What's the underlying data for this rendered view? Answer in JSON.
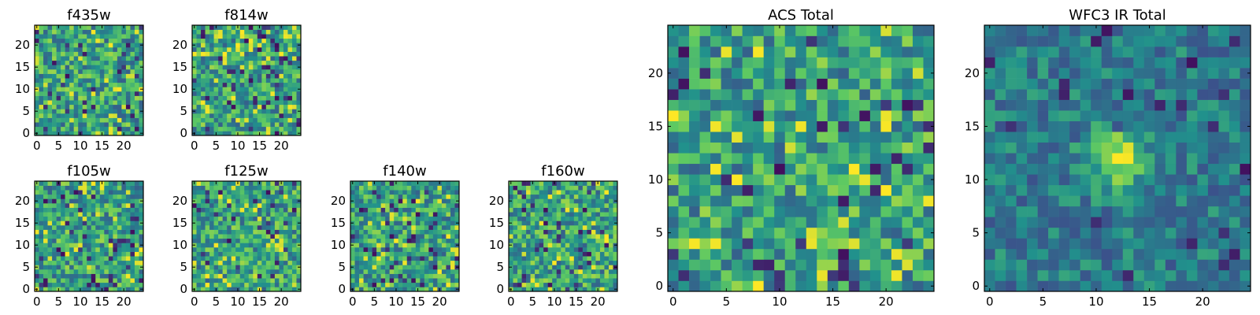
{
  "figure": {
    "colormap": [
      "#440154",
      "#3b528b",
      "#21918c",
      "#5ec962",
      "#fde725"
    ],
    "frame_color": "#000000"
  },
  "chart_data": [
    {
      "type": "heatmap",
      "title": "f435w",
      "grid": false,
      "nx": 25,
      "ny": 25,
      "xlim": [
        -0.5,
        24.5
      ],
      "ylim": [
        -0.5,
        24.5
      ],
      "xticks": [
        0,
        5,
        10,
        15,
        20
      ],
      "yticks": [
        0,
        5,
        10,
        15,
        20
      ],
      "source_seed": 11,
      "source": null,
      "values": []
    },
    {
      "type": "heatmap",
      "title": "f814w",
      "grid": false,
      "nx": 25,
      "ny": 25,
      "xlim": [
        -0.5,
        24.5
      ],
      "ylim": [
        -0.5,
        24.5
      ],
      "xticks": [
        0,
        5,
        10,
        15,
        20
      ],
      "yticks": [
        0,
        5,
        10,
        15,
        20
      ],
      "source_seed": 23,
      "source": null,
      "values": []
    },
    {
      "type": "heatmap",
      "title": "f105w",
      "grid": false,
      "nx": 25,
      "ny": 25,
      "xlim": [
        -0.5,
        24.5
      ],
      "ylim": [
        -0.5,
        24.5
      ],
      "xticks": [
        0,
        5,
        10,
        15,
        20
      ],
      "yticks": [
        0,
        5,
        10,
        15,
        20
      ],
      "source_seed": 37,
      "source": null,
      "values": []
    },
    {
      "type": "heatmap",
      "title": "f125w",
      "grid": false,
      "nx": 25,
      "ny": 25,
      "xlim": [
        -0.5,
        24.5
      ],
      "ylim": [
        -0.5,
        24.5
      ],
      "xticks": [
        0,
        5,
        10,
        15,
        20
      ],
      "yticks": [
        0,
        5,
        10,
        15,
        20
      ],
      "source_seed": 41,
      "source": null,
      "values": []
    },
    {
      "type": "heatmap",
      "title": "f140w",
      "grid": false,
      "nx": 25,
      "ny": 25,
      "xlim": [
        -0.5,
        24.5
      ],
      "ylim": [
        -0.5,
        24.5
      ],
      "xticks": [
        0,
        5,
        10,
        15,
        20
      ],
      "yticks": [
        0,
        5,
        10,
        15,
        20
      ],
      "source_seed": 53,
      "source": null,
      "values": []
    },
    {
      "type": "heatmap",
      "title": "f160w",
      "grid": false,
      "nx": 25,
      "ny": 25,
      "xlim": [
        -0.5,
        24.5
      ],
      "ylim": [
        -0.5,
        24.5
      ],
      "xticks": [
        0,
        5,
        10,
        15,
        20
      ],
      "yticks": [
        0,
        5,
        10,
        15,
        20
      ],
      "source_seed": 67,
      "source": null,
      "values": []
    },
    {
      "type": "heatmap",
      "title": "ACS Total",
      "grid": false,
      "nx": 25,
      "ny": 25,
      "xlim": [
        -0.5,
        24.5
      ],
      "ylim": [
        -0.5,
        24.5
      ],
      "xticks": [
        0,
        5,
        10,
        15,
        20
      ],
      "yticks": [
        0,
        5,
        10,
        15,
        20
      ],
      "source_seed": 79,
      "source": null,
      "values": []
    },
    {
      "type": "heatmap",
      "title": "WFC3 IR Total",
      "grid": false,
      "nx": 25,
      "ny": 25,
      "xlim": [
        -0.5,
        24.5
      ],
      "ylim": [
        -0.5,
        24.5
      ],
      "xticks": [
        0,
        5,
        10,
        15,
        20
      ],
      "yticks": [
        0,
        5,
        10,
        15,
        20
      ],
      "source_seed": 97,
      "source": {
        "x": 12,
        "y": 12
      },
      "values": []
    }
  ]
}
